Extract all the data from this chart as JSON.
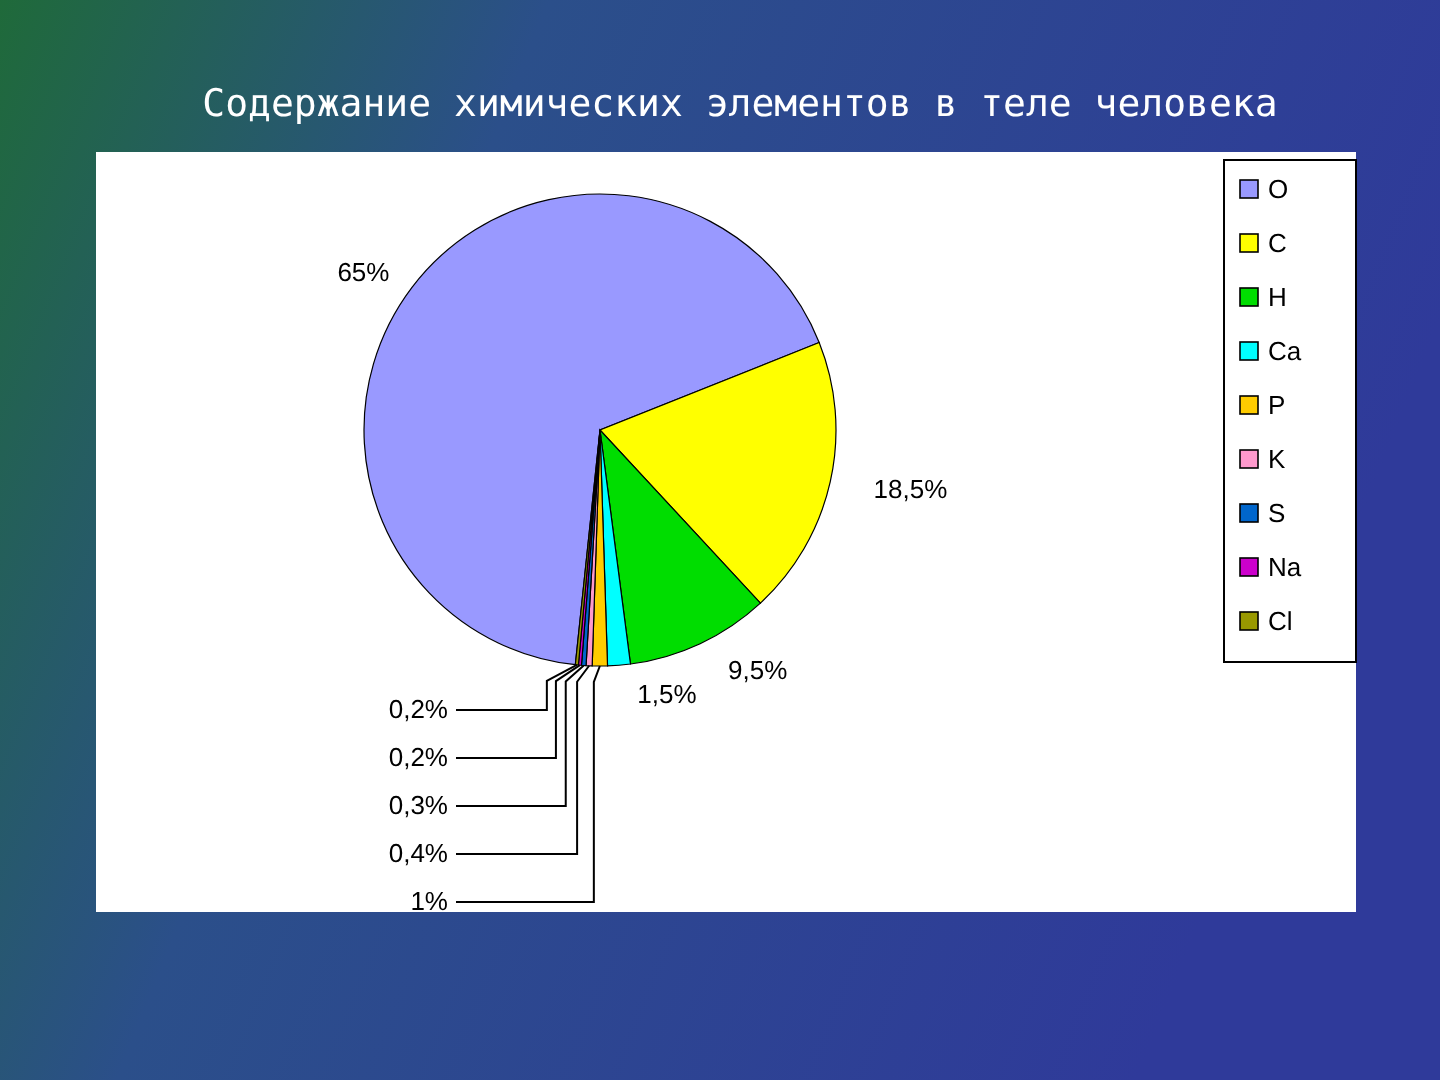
{
  "chart_data": {
    "type": "pie",
    "title": "Содержание химических элементов в теле человека",
    "categories": [
      "O",
      "C",
      "H",
      "Ca",
      "P",
      "K",
      "S",
      "Na",
      "Cl"
    ],
    "values": [
      65,
      18.5,
      9.5,
      1.5,
      1,
      0.4,
      0.3,
      0.2,
      0.2
    ],
    "colors": [
      "#9999ff",
      "#ffff00",
      "#00dd00",
      "#00ffff",
      "#ffcc00",
      "#ff99cc",
      "#0066cc",
      "#cc00cc",
      "#999900"
    ],
    "value_labels": [
      "65%",
      "18,5%",
      "9,5%",
      "1,5%",
      "1%",
      "0,4%",
      "0,3%",
      "0,2%",
      "0,2%"
    ],
    "legend": "right"
  }
}
